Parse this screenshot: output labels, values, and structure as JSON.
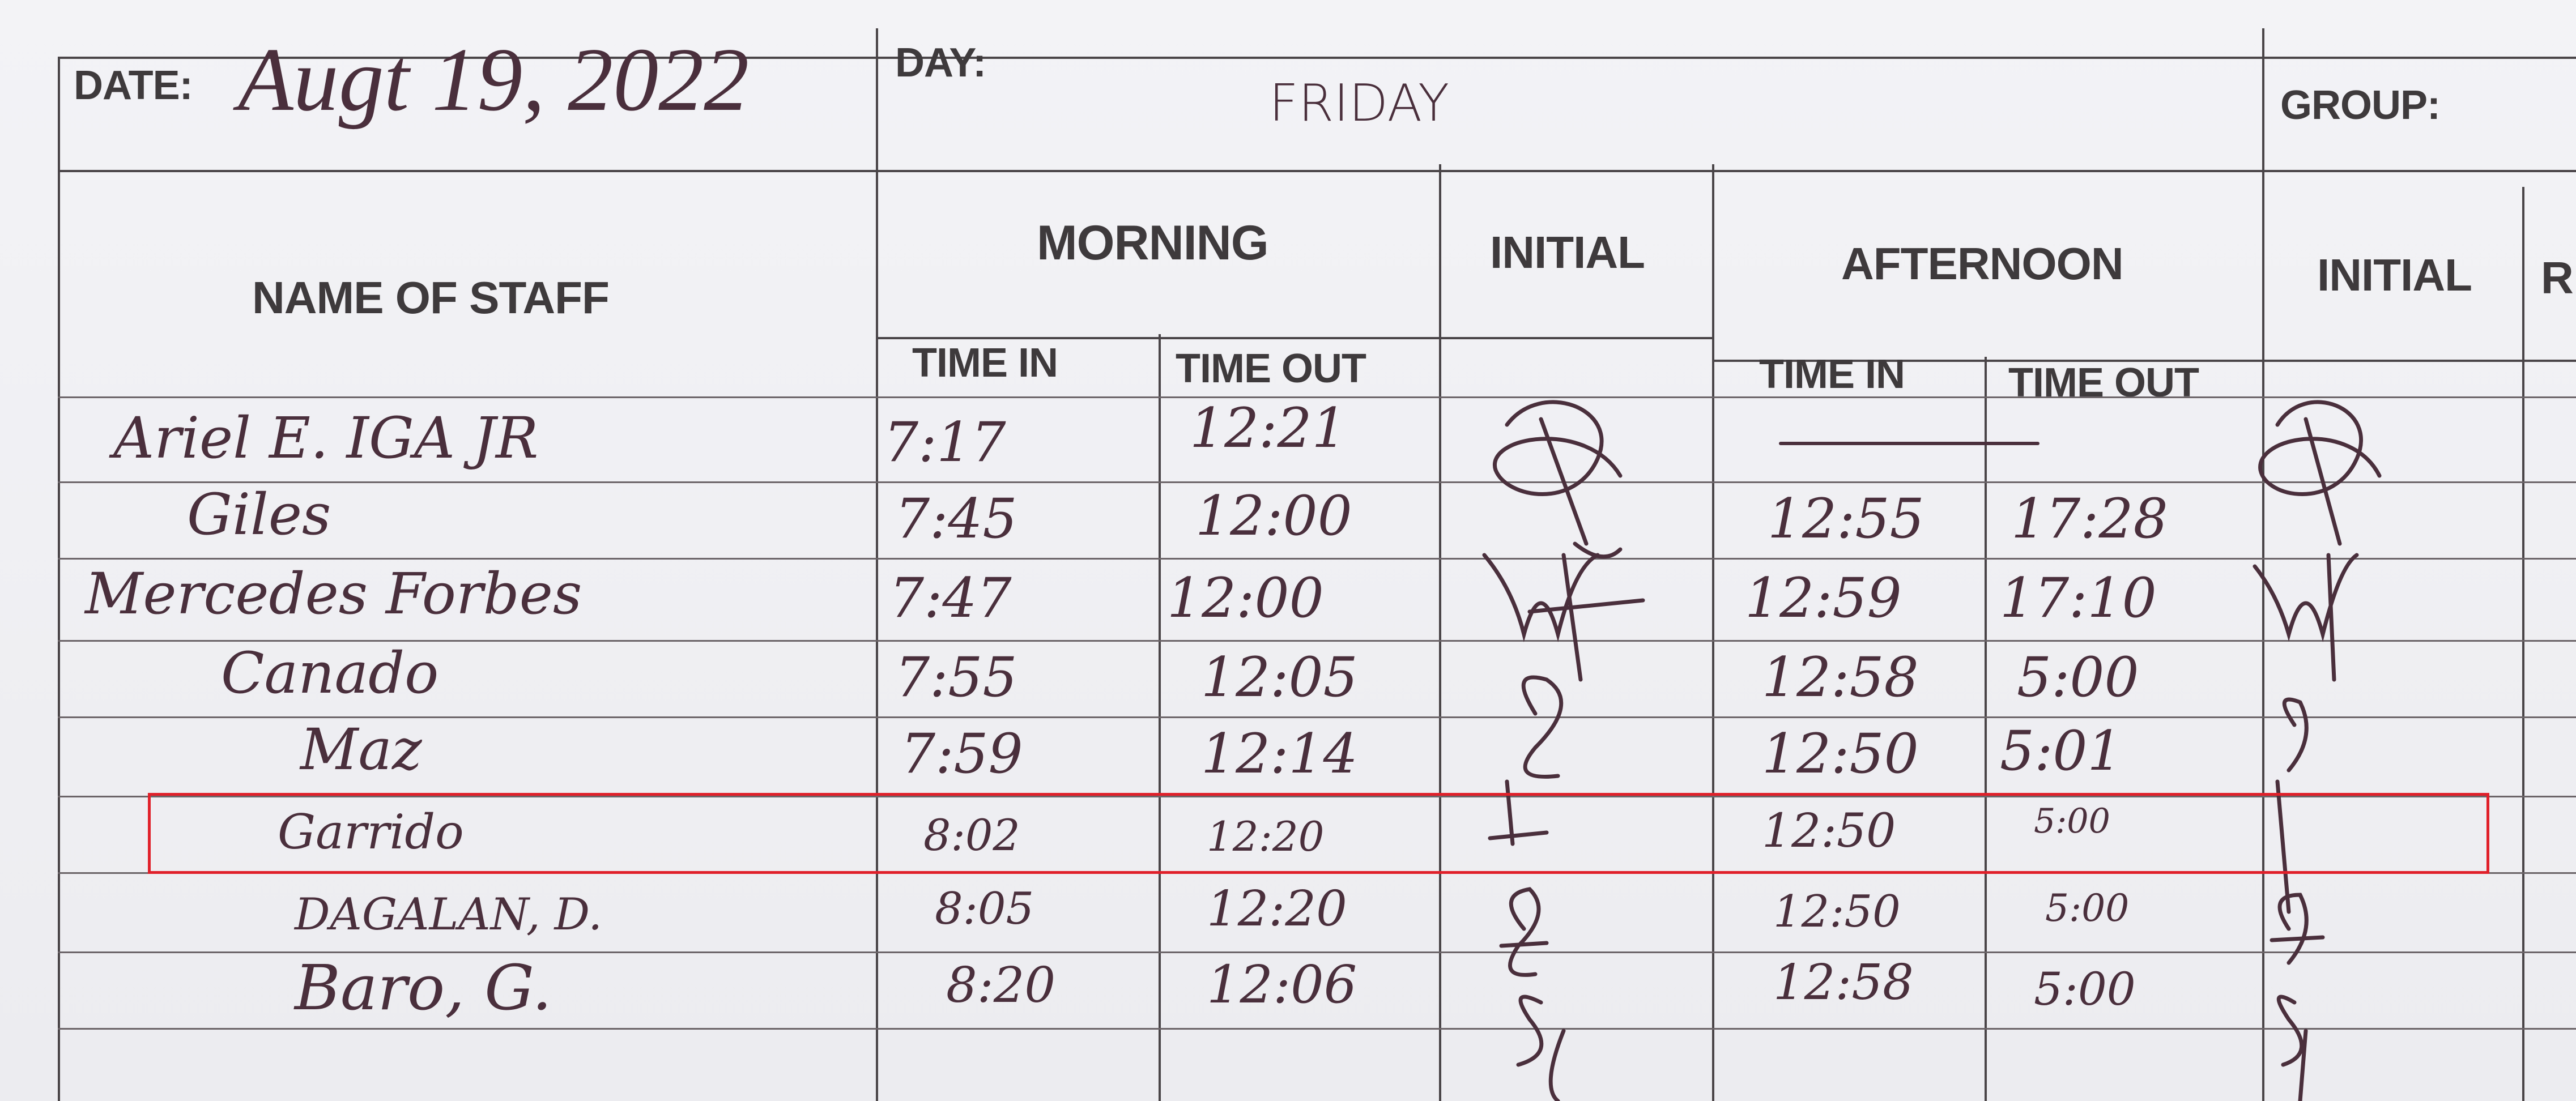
{
  "header": {
    "date_label": "DATE:",
    "date_value": "Augt 19, 2022",
    "day_label": "DAY:",
    "day_value": "FRIDAY",
    "group_label": "GROUP:"
  },
  "columns": {
    "name": "NAME OF STAFF",
    "morning": "MORNING",
    "initial_1": "INITIAL",
    "afternoon": "AFTERNOON",
    "initial_2": "INITIAL",
    "remarks": "RE",
    "time_in": "TIME IN",
    "time_out": "TIME OUT"
  },
  "rows": [
    {
      "name": "Ariel E. IGA JR",
      "am_in": "7:17",
      "am_out": "12:21",
      "pm_in": "—",
      "pm_out": ""
    },
    {
      "name": "Giles",
      "am_in": "7:45",
      "am_out": "12:00",
      "pm_in": "12:55",
      "pm_out": "17:28"
    },
    {
      "name": "Mercedes Forbes",
      "am_in": "7:47",
      "am_out": "12:00",
      "pm_in": "12:59",
      "pm_out": "17:10"
    },
    {
      "name": "Canado",
      "am_in": "7:55",
      "am_out": "12:05",
      "pm_in": "12:58",
      "pm_out": "5:00"
    },
    {
      "name": "Maz",
      "am_in": "7:59",
      "am_out": "12:14",
      "pm_in": "12:50",
      "pm_out": "5:01"
    },
    {
      "name": "Garrido",
      "am_in": "8:02",
      "am_out": "12:20",
      "pm_in": "12:50",
      "pm_out": "5:00"
    },
    {
      "name": "DAGALAN, D.",
      "am_in": "8:05",
      "am_out": "12:20",
      "pm_in": "12:50",
      "pm_out": "5:00"
    },
    {
      "name": "Baro, G.",
      "am_in": "8:20",
      "am_out": "12:06",
      "pm_in": "12:58",
      "pm_out": "5:00"
    }
  ],
  "highlight": {
    "row": "Garrido",
    "color": "#e0202a"
  },
  "ink_color": "#4a2f3c"
}
